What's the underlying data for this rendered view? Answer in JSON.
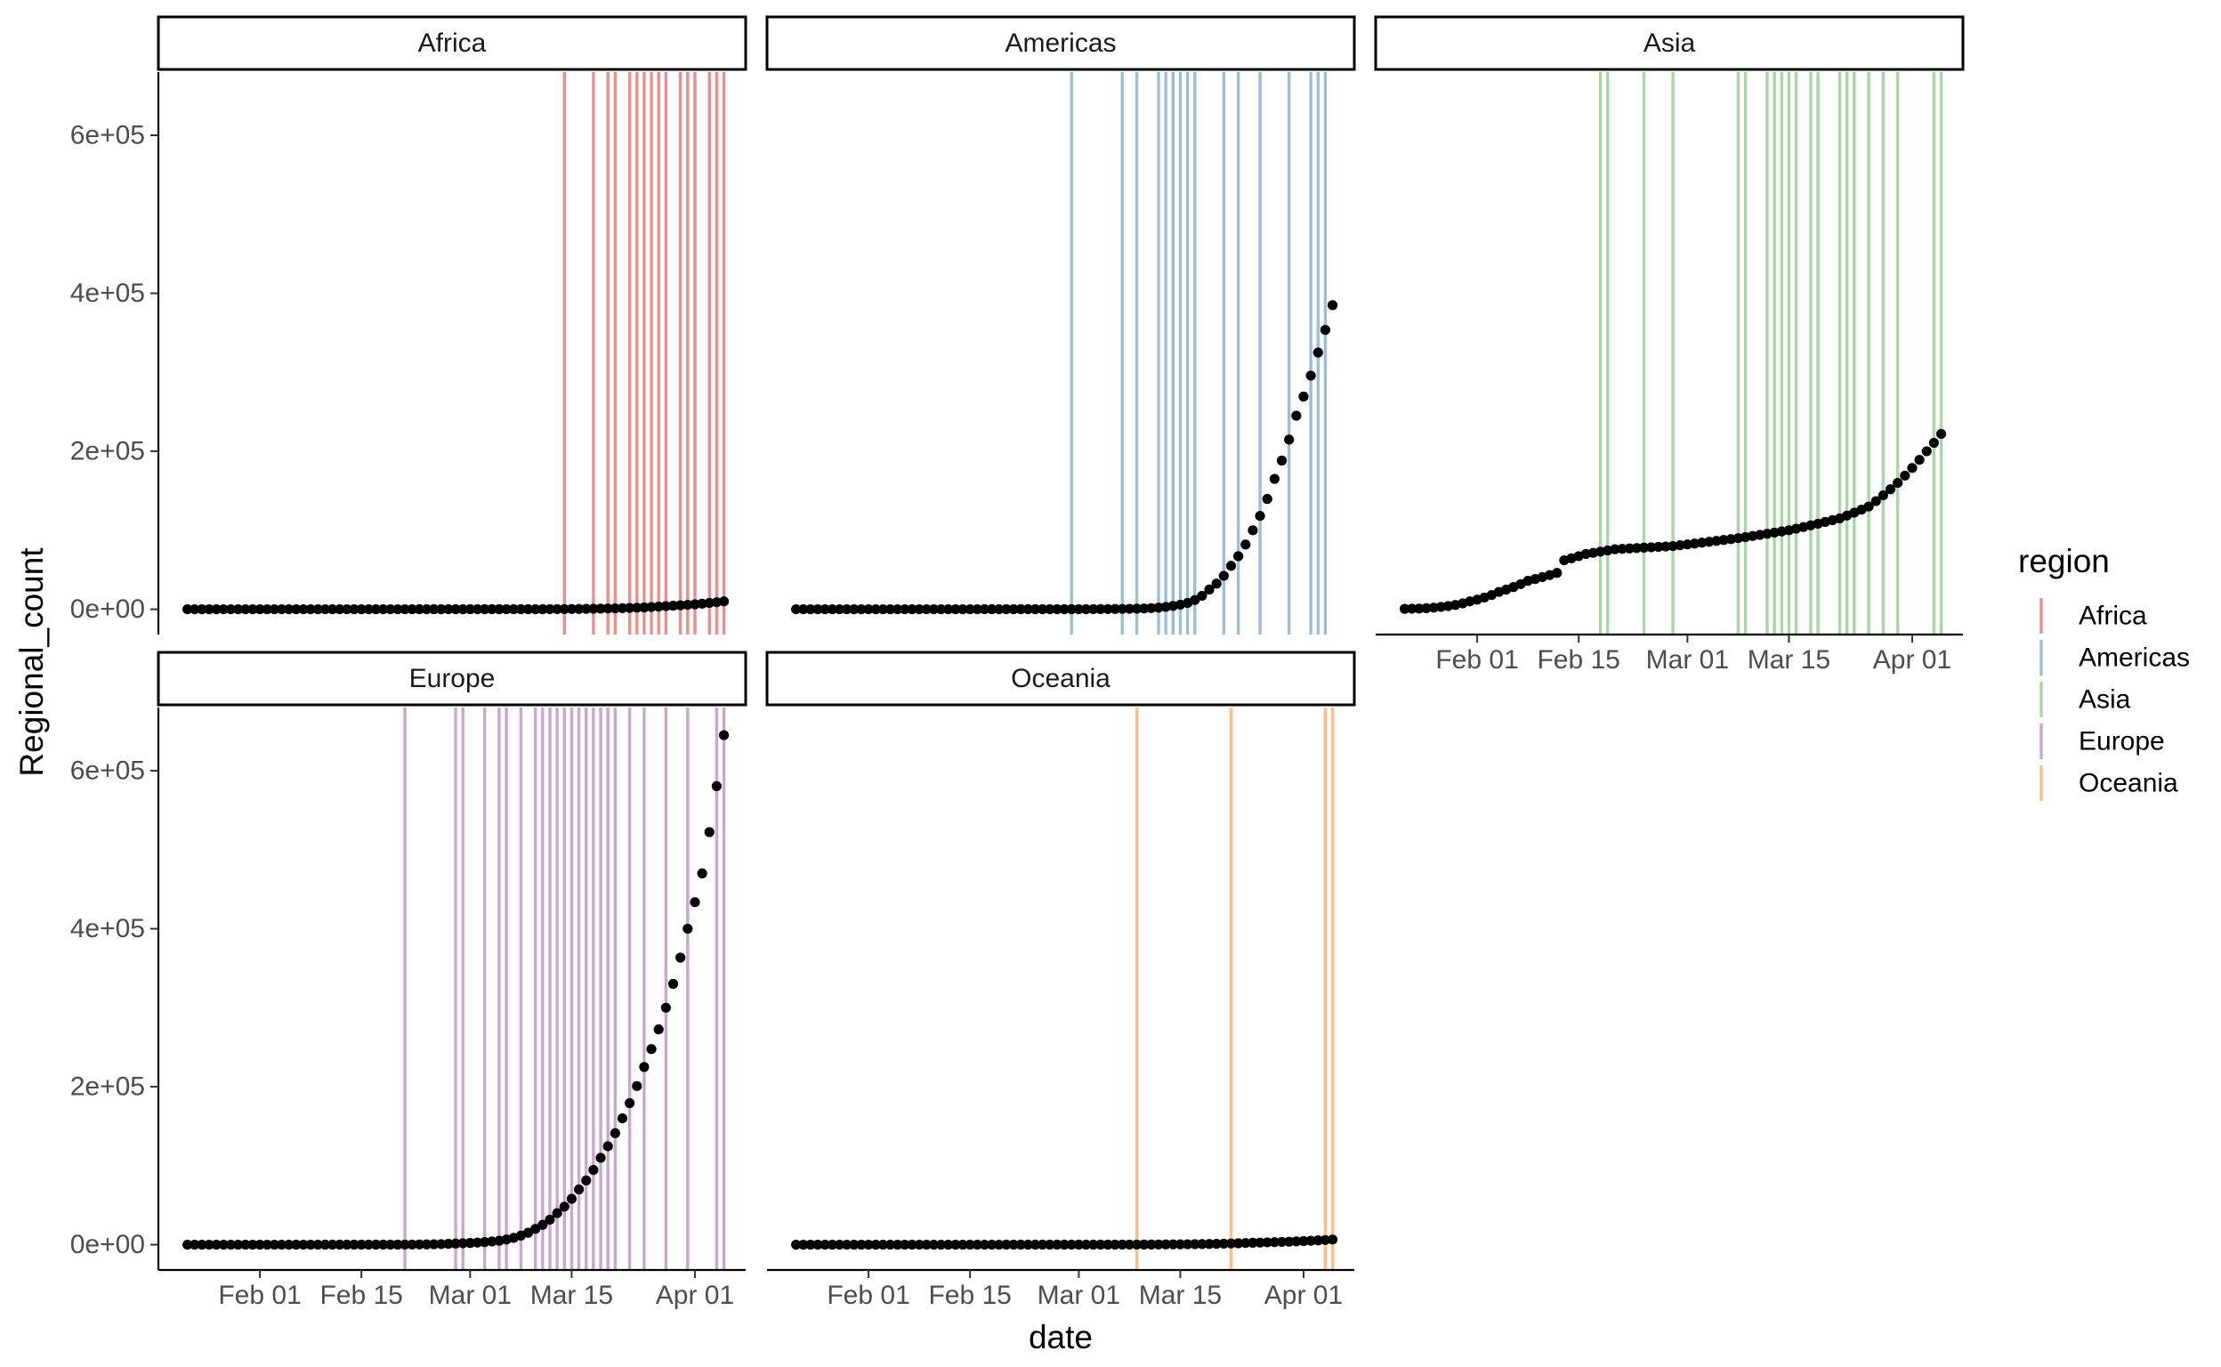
{
  "chart_data": {
    "type": "faceted-scatter-with-vertical-lines",
    "xlabel": "date",
    "ylabel": "Regional_count",
    "x_ticks": [
      {
        "date": "2020-02-01",
        "label": "Feb 01"
      },
      {
        "date": "2020-02-15",
        "label": "Feb 15"
      },
      {
        "date": "2020-03-01",
        "label": "Mar 01"
      },
      {
        "date": "2020-03-15",
        "label": "Mar 15"
      },
      {
        "date": "2020-04-01",
        "label": "Apr 01"
      }
    ],
    "y_ticks": [
      {
        "value": 0,
        "label": "0e+00"
      },
      {
        "value": 200000,
        "label": "2e+05"
      },
      {
        "value": 400000,
        "label": "4e+05"
      },
      {
        "value": 600000,
        "label": "6e+05"
      }
    ],
    "xlim": [
      "2020-01-18",
      "2020-04-08"
    ],
    "ylim": [
      -32000,
      680000
    ],
    "series_start": "2020-01-22",
    "series_end": "2020-04-05",
    "grid": false,
    "legend": {
      "title": "region",
      "position": "right",
      "entries": [
        {
          "label": "Africa",
          "color": "#E41A1C"
        },
        {
          "label": "Americas",
          "color": "#377EB8"
        },
        {
          "label": "Asia",
          "color": "#4DAF4A"
        },
        {
          "label": "Europe",
          "color": "#984EA3"
        },
        {
          "label": "Oceania",
          "color": "#FF7F00"
        }
      ]
    },
    "facets": [
      {
        "label": "Africa",
        "color": "#E41A1C",
        "count_anchors": [
          [
            "2020-01-22",
            0
          ],
          [
            "2020-03-10",
            100
          ],
          [
            "2020-03-20",
            1000
          ],
          [
            "2020-03-28",
            4000
          ],
          [
            "2020-04-05",
            10000
          ]
        ],
        "event_dates": [
          "2020-03-14",
          "2020-03-18",
          "2020-03-20",
          "2020-03-21",
          "2020-03-23",
          "2020-03-24",
          "2020-03-25",
          "2020-03-26",
          "2020-03-27",
          "2020-03-28",
          "2020-03-30",
          "2020-03-31",
          "2020-04-01",
          "2020-04-03",
          "2020-04-04",
          "2020-04-05"
        ]
      },
      {
        "label": "Americas",
        "color": "#377EB8",
        "count_anchors": [
          [
            "2020-01-22",
            0
          ],
          [
            "2020-03-01",
            100
          ],
          [
            "2020-03-10",
            1000
          ],
          [
            "2020-03-13",
            3000
          ],
          [
            "2020-03-16",
            8000
          ],
          [
            "2020-03-19",
            25000
          ],
          [
            "2020-03-22",
            55000
          ],
          [
            "2020-03-25",
            100000
          ],
          [
            "2020-03-28",
            165000
          ],
          [
            "2020-03-31",
            245000
          ],
          [
            "2020-04-03",
            325000
          ],
          [
            "2020-04-05",
            385000
          ]
        ],
        "event_dates": [
          "2020-02-29",
          "2020-03-07",
          "2020-03-09",
          "2020-03-12",
          "2020-03-13",
          "2020-03-14",
          "2020-03-15",
          "2020-03-16",
          "2020-03-17",
          "2020-03-21",
          "2020-03-23",
          "2020-03-26",
          "2020-03-30",
          "2020-04-02",
          "2020-04-03",
          "2020-04-04"
        ]
      },
      {
        "label": "Asia",
        "color": "#4DAF4A",
        "count_anchors": [
          [
            "2020-01-22",
            550
          ],
          [
            "2020-01-24",
            900
          ],
          [
            "2020-01-27",
            3000
          ],
          [
            "2020-01-31",
            10000
          ],
          [
            "2020-02-04",
            22000
          ],
          [
            "2020-02-08",
            36000
          ],
          [
            "2020-02-12",
            46000
          ],
          [
            "2020-02-13",
            62000
          ],
          [
            "2020-02-16",
            70000
          ],
          [
            "2020-02-20",
            76000
          ],
          [
            "2020-02-28",
            80000
          ],
          [
            "2020-03-08",
            90000
          ],
          [
            "2020-03-15",
            100000
          ],
          [
            "2020-03-22",
            115000
          ],
          [
            "2020-03-26",
            130000
          ],
          [
            "2020-03-30",
            160000
          ],
          [
            "2020-04-03",
            200000
          ],
          [
            "2020-04-05",
            222000
          ]
        ],
        "event_dates": [
          "2020-02-18",
          "2020-02-19",
          "2020-02-24",
          "2020-02-28",
          "2020-03-08",
          "2020-03-09",
          "2020-03-12",
          "2020-03-13",
          "2020-03-14",
          "2020-03-15",
          "2020-03-16",
          "2020-03-18",
          "2020-03-19",
          "2020-03-22",
          "2020-03-23",
          "2020-03-24",
          "2020-03-26",
          "2020-03-28",
          "2020-03-30",
          "2020-04-04",
          "2020-04-05"
        ]
      },
      {
        "label": "Europe",
        "color": "#984EA3",
        "count_anchors": [
          [
            "2020-01-22",
            0
          ],
          [
            "2020-02-20",
            100
          ],
          [
            "2020-02-28",
            1500
          ],
          [
            "2020-03-05",
            5000
          ],
          [
            "2020-03-10",
            20000
          ],
          [
            "2020-03-13",
            40000
          ],
          [
            "2020-03-16",
            70000
          ],
          [
            "2020-03-19",
            110000
          ],
          [
            "2020-03-22",
            160000
          ],
          [
            "2020-03-25",
            225000
          ],
          [
            "2020-03-28",
            300000
          ],
          [
            "2020-03-31",
            400000
          ],
          [
            "2020-04-02",
            470000
          ],
          [
            "2020-04-05",
            645000
          ]
        ],
        "event_dates": [
          "2020-02-21",
          "2020-02-28",
          "2020-02-29",
          "2020-03-03",
          "2020-03-05",
          "2020-03-06",
          "2020-03-08",
          "2020-03-10",
          "2020-03-11",
          "2020-03-12",
          "2020-03-13",
          "2020-03-14",
          "2020-03-15",
          "2020-03-16",
          "2020-03-17",
          "2020-03-18",
          "2020-03-19",
          "2020-03-20",
          "2020-03-21",
          "2020-03-23",
          "2020-03-25",
          "2020-03-28",
          "2020-03-31",
          "2020-04-04",
          "2020-04-05"
        ]
      },
      {
        "label": "Oceania",
        "color": "#FF7F00",
        "count_anchors": [
          [
            "2020-01-22",
            0
          ],
          [
            "2020-03-05",
            100
          ],
          [
            "2020-03-15",
            500
          ],
          [
            "2020-03-25",
            2500
          ],
          [
            "2020-04-05",
            6500
          ]
        ],
        "event_dates": [
          "2020-03-09",
          "2020-03-22",
          "2020-04-04",
          "2020-04-05"
        ]
      }
    ]
  }
}
